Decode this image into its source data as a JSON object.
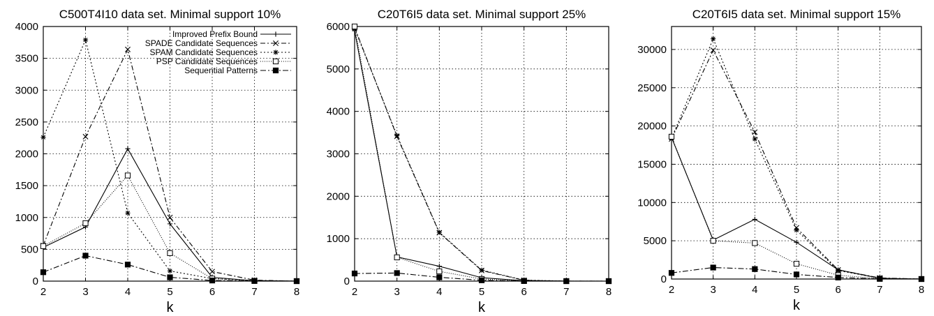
{
  "chart_data": [
    {
      "type": "line",
      "title": "C500T4I10 data set. Minimal support 10%",
      "xlabel": "k",
      "ylabel": "",
      "xlim": [
        2,
        8
      ],
      "ylim": [
        0,
        4000
      ],
      "yticks": [
        0,
        500,
        1000,
        1500,
        2000,
        2500,
        3000,
        3500,
        4000
      ],
      "xticks": [
        2,
        3,
        4,
        5,
        6,
        7,
        8
      ],
      "grid": true,
      "legend": "top-right",
      "series": [
        {
          "name": "Improved Prefix Bound",
          "x": [
            2,
            3,
            4,
            5,
            6,
            7,
            8
          ],
          "values": [
            530,
            850,
            2080,
            900,
            60,
            5,
            0
          ]
        },
        {
          "name": "SPADE Candidate Sequences",
          "x": [
            2,
            3,
            4,
            5,
            6,
            7,
            8
          ],
          "values": [
            560,
            2270,
            3640,
            1000,
            150,
            15,
            0
          ]
        },
        {
          "name": "SPAM Candidate Sequences",
          "x": [
            2,
            3,
            4,
            5,
            6,
            7,
            8
          ],
          "values": [
            2260,
            3790,
            1070,
            160,
            40,
            10,
            0
          ]
        },
        {
          "name": "PSP Candidate Sequences",
          "x": [
            2,
            3,
            4,
            5,
            6,
            7,
            8
          ],
          "values": [
            550,
            910,
            1660,
            440,
            40,
            5,
            0
          ]
        },
        {
          "name": "Sequential Patterns",
          "x": [
            2,
            3,
            4,
            5,
            6,
            7,
            8
          ],
          "values": [
            140,
            400,
            260,
            60,
            10,
            2,
            0
          ]
        }
      ]
    },
    {
      "type": "line",
      "title": "C20T6I5 data set. Minimal support 25%",
      "xlabel": "k",
      "ylabel": "",
      "xlim": [
        2,
        8
      ],
      "ylim": [
        0,
        6000
      ],
      "yticks": [
        0,
        1000,
        2000,
        3000,
        4000,
        5000,
        6000
      ],
      "xticks": [
        2,
        3,
        4,
        5,
        6,
        7,
        8
      ],
      "grid": true,
      "series": [
        {
          "name": "Improved Prefix Bound",
          "x": [
            2,
            3,
            4,
            5,
            6,
            7,
            8
          ],
          "values": [
            5900,
            570,
            350,
            80,
            10,
            0,
            0
          ]
        },
        {
          "name": "SPADE Candidate Sequences",
          "x": [
            2,
            3,
            4,
            5,
            6,
            7,
            8
          ],
          "values": [
            5980,
            3410,
            1140,
            250,
            20,
            2,
            0
          ]
        },
        {
          "name": "SPAM Candidate Sequences",
          "x": [
            2,
            3,
            4,
            5,
            6,
            7,
            8
          ],
          "values": [
            5950,
            3430,
            1150,
            260,
            25,
            2,
            0
          ]
        },
        {
          "name": "PSP Candidate Sequences",
          "x": [
            2,
            3,
            4,
            5,
            6,
            7,
            8
          ],
          "values": [
            6000,
            560,
            230,
            50,
            5,
            0,
            0
          ]
        },
        {
          "name": "Sequential Patterns",
          "x": [
            2,
            3,
            4,
            5,
            6,
            7,
            8
          ],
          "values": [
            180,
            190,
            90,
            20,
            2,
            0,
            0
          ]
        }
      ]
    },
    {
      "type": "line",
      "title": "C20T6I5 data set. Minimal support 15%",
      "xlabel": "k",
      "ylabel": "",
      "xlim": [
        2,
        8
      ],
      "ylim": [
        0,
        33000
      ],
      "yticks": [
        0,
        5000,
        10000,
        15000,
        20000,
        25000,
        30000
      ],
      "xticks": [
        2,
        3,
        4,
        5,
        6,
        7,
        8
      ],
      "grid": true,
      "series": [
        {
          "name": "Improved Prefix Bound",
          "x": [
            2,
            3,
            4,
            5,
            6,
            7,
            8
          ],
          "values": [
            18500,
            5100,
            7800,
            4800,
            1200,
            100,
            0
          ]
        },
        {
          "name": "SPADE Candidate Sequences",
          "x": [
            2,
            3,
            4,
            5,
            6,
            7,
            8
          ],
          "values": [
            18300,
            29900,
            19200,
            6700,
            1200,
            150,
            0
          ]
        },
        {
          "name": "SPAM Candidate Sequences",
          "x": [
            2,
            3,
            4,
            5,
            6,
            7,
            8
          ],
          "values": [
            18400,
            31400,
            18300,
            6400,
            1100,
            120,
            0
          ]
        },
        {
          "name": "PSP Candidate Sequences",
          "x": [
            2,
            3,
            4,
            5,
            6,
            7,
            8
          ],
          "values": [
            18600,
            5000,
            4700,
            2000,
            500,
            50,
            0
          ]
        },
        {
          "name": "Sequential Patterns",
          "x": [
            2,
            3,
            4,
            5,
            6,
            7,
            8
          ],
          "values": [
            800,
            1500,
            1300,
            600,
            200,
            20,
            0
          ]
        }
      ]
    }
  ]
}
